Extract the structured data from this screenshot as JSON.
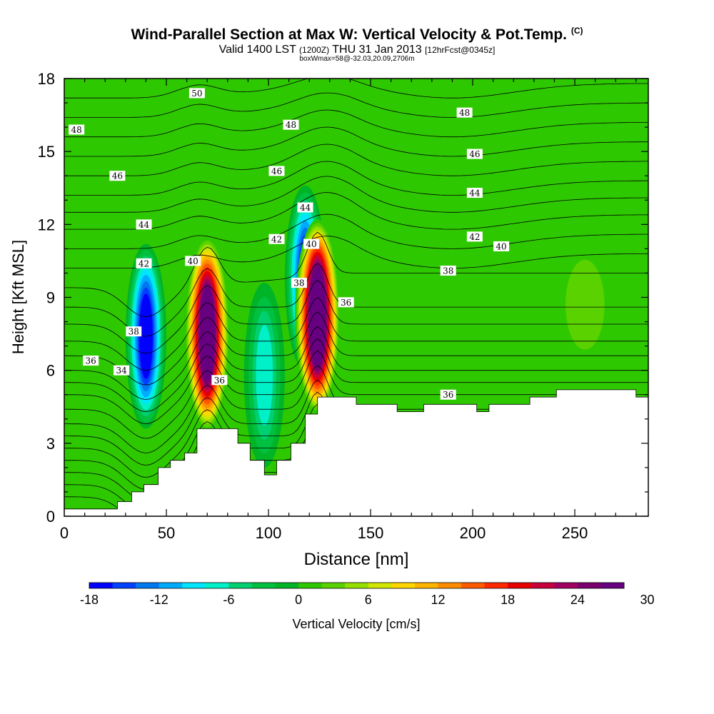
{
  "header": {
    "title": "Wind-Parallel Section at Max W: Vertical Velocity & Pot.Temp.",
    "copyright": "(C)",
    "valid_prefix": "Valid 1400 LST",
    "valid_utc": "(1200Z)",
    "valid_date": "THU 31 Jan 2013",
    "forecast": "[12hrFcst@0345z]",
    "box_info": "boxWmax=58@-32.03,20.09,2706m"
  },
  "chart_data": {
    "type": "heatmap",
    "xlabel": "Distance [nm]",
    "ylabel": "Height [Kft MSL]",
    "xlim": [
      0,
      286
    ],
    "ylim": [
      0,
      18
    ],
    "x_ticks": [
      0,
      50,
      100,
      150,
      200,
      250
    ],
    "y_ticks": [
      0,
      3,
      6,
      9,
      12,
      15,
      18
    ],
    "colorbar": {
      "label": "Vertical Velocity [cm/s]",
      "range": [
        -18,
        32
      ],
      "step": 2,
      "tick_labels": [
        -18,
        -12,
        -6,
        0,
        6,
        12,
        18,
        24,
        30
      ],
      "colors": [
        "#0000ff",
        "#0040ff",
        "#0078f0",
        "#00aaff",
        "#00e6ff",
        "#00f0c8",
        "#00d070",
        "#00c040",
        "#00b428",
        "#2ec800",
        "#5ad200",
        "#96e000",
        "#d2e600",
        "#ffd700",
        "#ffb400",
        "#ff8c00",
        "#ff5a00",
        "#ff2800",
        "#e60000",
        "#c8003c",
        "#a00060",
        "#7a006e",
        "#660080"
      ]
    },
    "background_w": 0,
    "w_features": [
      {
        "x": 40,
        "y": 7.4,
        "w": -18,
        "type": "downdraft"
      },
      {
        "x": 70,
        "y": 7.5,
        "w": 28,
        "type": "updraft"
      },
      {
        "x": 98,
        "y": 5.8,
        "w": -8,
        "type": "downdraft"
      },
      {
        "x": 118,
        "y": 9.8,
        "w": -16,
        "type": "downdraft"
      },
      {
        "x": 124,
        "y": 8.2,
        "w": 30,
        "type": "updraft"
      },
      {
        "x": 185,
        "y": 7.2,
        "w": 2,
        "type": "weak"
      },
      {
        "x": 255,
        "y": 8.7,
        "w": 4,
        "type": "weak"
      }
    ],
    "theta_contours": [
      {
        "label": "34",
        "x": 28,
        "y": 6.0
      },
      {
        "label": "36",
        "x": 13,
        "y": 6.4
      },
      {
        "label": "36",
        "x": 76,
        "y": 5.6
      },
      {
        "label": "36",
        "x": 138,
        "y": 8.8
      },
      {
        "label": "36",
        "x": 188,
        "y": 5.0
      },
      {
        "label": "38",
        "x": 34,
        "y": 7.6
      },
      {
        "label": "38",
        "x": 115,
        "y": 9.6
      },
      {
        "label": "38",
        "x": 188,
        "y": 10.1
      },
      {
        "label": "40",
        "x": 63,
        "y": 10.5
      },
      {
        "label": "40",
        "x": 121,
        "y": 11.2
      },
      {
        "label": "40",
        "x": 214,
        "y": 11.1
      },
      {
        "label": "42",
        "x": 39,
        "y": 10.4
      },
      {
        "label": "42",
        "x": 104,
        "y": 11.4
      },
      {
        "label": "42",
        "x": 201,
        "y": 11.5
      },
      {
        "label": "44",
        "x": 39,
        "y": 12.0
      },
      {
        "label": "44",
        "x": 118,
        "y": 12.7
      },
      {
        "label": "44",
        "x": 201,
        "y": 13.3
      },
      {
        "label": "46",
        "x": 26,
        "y": 14.0
      },
      {
        "label": "46",
        "x": 104,
        "y": 14.2
      },
      {
        "label": "46",
        "x": 201,
        "y": 14.9
      },
      {
        "label": "48",
        "x": 6,
        "y": 15.9
      },
      {
        "label": "48",
        "x": 111,
        "y": 16.1
      },
      {
        "label": "48",
        "x": 196,
        "y": 16.6
      },
      {
        "label": "50",
        "x": 65,
        "y": 17.4
      }
    ],
    "terrain_profile": [
      [
        0,
        0.3
      ],
      [
        26,
        0.3
      ],
      [
        26,
        0.6
      ],
      [
        33,
        0.6
      ],
      [
        33,
        1.0
      ],
      [
        39,
        1.0
      ],
      [
        39,
        1.3
      ],
      [
        46,
        1.3
      ],
      [
        46,
        2.0
      ],
      [
        52,
        2.0
      ],
      [
        52,
        2.3
      ],
      [
        59,
        2.3
      ],
      [
        59,
        2.6
      ],
      [
        65,
        2.6
      ],
      [
        65,
        3.6
      ],
      [
        85,
        3.6
      ],
      [
        85,
        3.0
      ],
      [
        91,
        3.0
      ],
      [
        91,
        2.3
      ],
      [
        98,
        2.3
      ],
      [
        98,
        1.7
      ],
      [
        104,
        1.7
      ],
      [
        104,
        2.3
      ],
      [
        111,
        2.3
      ],
      [
        111,
        3.0
      ],
      [
        118,
        3.0
      ],
      [
        118,
        4.2
      ],
      [
        124,
        4.2
      ],
      [
        124,
        4.9
      ],
      [
        143,
        4.9
      ],
      [
        143,
        4.6
      ],
      [
        163,
        4.6
      ],
      [
        163,
        4.3
      ],
      [
        176,
        4.3
      ],
      [
        176,
        4.6
      ],
      [
        202,
        4.6
      ],
      [
        202,
        4.3
      ],
      [
        208,
        4.3
      ],
      [
        208,
        4.6
      ],
      [
        228,
        4.6
      ],
      [
        228,
        4.9
      ],
      [
        241,
        4.9
      ],
      [
        241,
        5.2
      ],
      [
        280,
        5.2
      ],
      [
        280,
        4.9
      ],
      [
        286,
        4.9
      ]
    ]
  }
}
